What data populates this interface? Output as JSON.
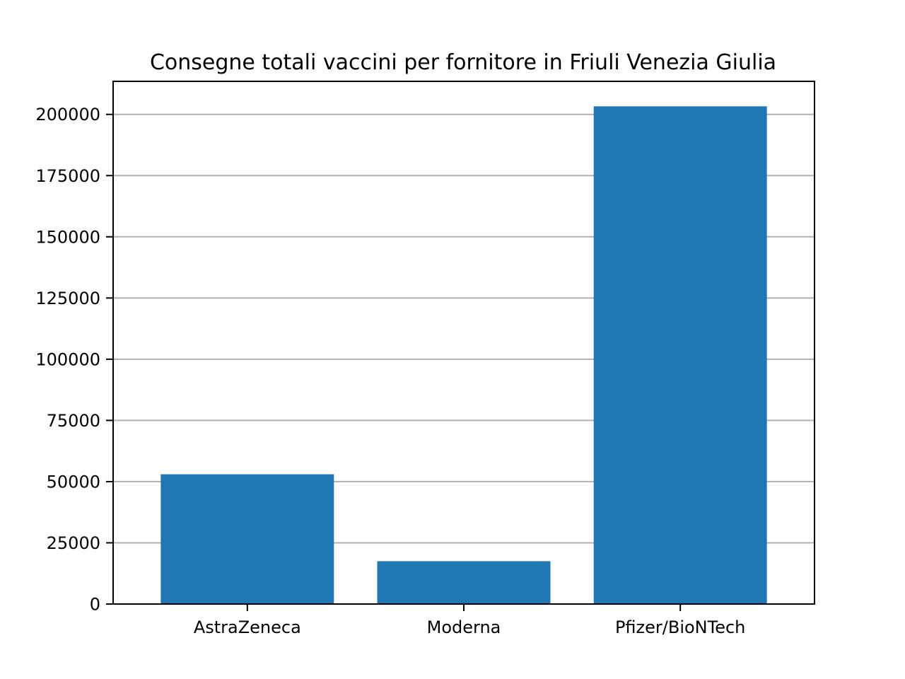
{
  "chart_data": {
    "type": "bar",
    "title": "Consegne totali vaccini per fornitore in Friuli Venezia Giulia",
    "xlabel": "",
    "ylabel": "",
    "categories": [
      "AstraZeneca",
      "Moderna",
      "Pfizer/BioNTech"
    ],
    "values": [
      53000,
      17500,
      203300
    ],
    "ylim": [
      0,
      213500
    ],
    "yticks": [
      0,
      25000,
      50000,
      75000,
      100000,
      125000,
      150000,
      175000,
      200000
    ],
    "ytick_labels": [
      "0",
      "25000",
      "50000",
      "75000",
      "100000",
      "125000",
      "150000",
      "175000",
      "200000"
    ],
    "grid": "y-axis",
    "legend": "none",
    "colors": {
      "bar": "#1f77b4",
      "grid": "#b0b0b0",
      "axis": "#000000"
    }
  }
}
